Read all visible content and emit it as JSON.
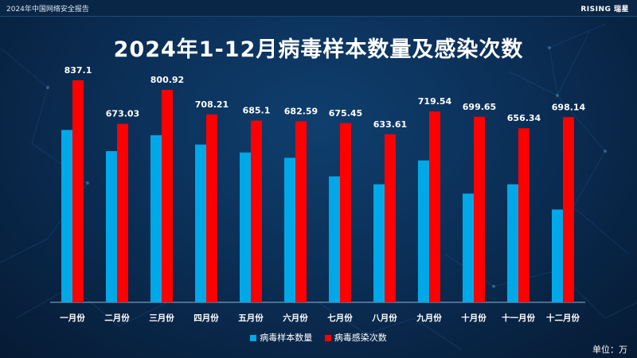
{
  "header": {
    "report_label": "2024年中国网络安全报告",
    "brand": "RISING 瑞星"
  },
  "colors": {
    "samples": "#00a8e8",
    "infections": "#ff0000",
    "background": "#0b2f57"
  },
  "chart_data": {
    "type": "bar",
    "title": "2024年1-12月病毒样本数量及感染次数",
    "categories": [
      "一月份",
      "二月份",
      "三月份",
      "四月份",
      "五月份",
      "六月份",
      "七月份",
      "八月份",
      "九月份",
      "十月份",
      "十一月份",
      "十二月份"
    ],
    "series": [
      {
        "name": "病毒样本数量",
        "color": "#00a8e8",
        "values": [
          650,
          570,
          630,
          595,
          565,
          545,
          475,
          445,
          535,
          410,
          445,
          350
        ],
        "show_labels": false
      },
      {
        "name": "病毒感染次数",
        "color": "#ff0000",
        "values": [
          837.1,
          673.03,
          800.92,
          708.21,
          685.1,
          682.59,
          675.45,
          633.61,
          719.54,
          699.65,
          656.34,
          698.14
        ],
        "labels": [
          "837.1",
          "673.03",
          "800.92",
          "708.21",
          "685.1",
          "682.59",
          "675.45",
          "633.61",
          "719.54",
          "699.65",
          "656.34",
          "698.14"
        ],
        "show_labels": true
      }
    ],
    "ylim": [
      0,
      900
    ],
    "grid": false,
    "legend_position": "bottom",
    "unit": "单位：万"
  }
}
